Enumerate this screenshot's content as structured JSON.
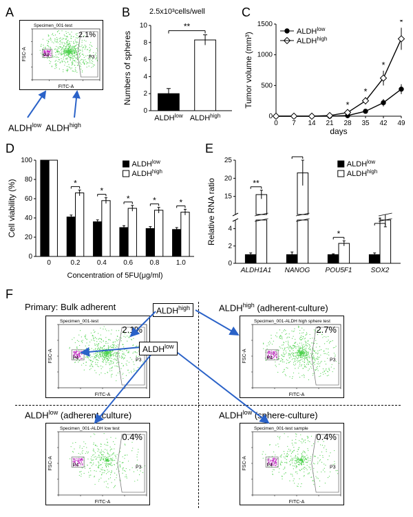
{
  "panelA": {
    "label": "A",
    "flow": {
      "title": "Specimen_001-test",
      "x_axis": "FITC-A",
      "y_axis": "FSC-A",
      "percent": "2.1%",
      "gate_p3": "P3",
      "gate_p4": "P4",
      "cloud_color": "#4fd24f",
      "p4_color": "#c838c8"
    },
    "low_label_pre": "ALDH",
    "low_label_sup": "low",
    "high_label_pre": "ALDH",
    "high_label_sup": "high"
  },
  "panelB": {
    "label": "B",
    "title": "2.5x10³cells/well",
    "y_label": "Numbers of spheres",
    "categories_pre": [
      "ALDH",
      "ALDH"
    ],
    "categories_sup": [
      "low",
      "high"
    ],
    "values": [
      2.0,
      8.3
    ],
    "errors": [
      0.6,
      0.6
    ],
    "fills": [
      "#000000",
      "#ffffff"
    ],
    "ylim": [
      0,
      10
    ],
    "ytick_step": 2,
    "sig": "**"
  },
  "panelC": {
    "label": "C",
    "y_label": "Tumor volume (mm³)",
    "x_label": "days",
    "x_ticks": [
      0,
      7,
      14,
      21,
      28,
      35,
      42,
      49
    ],
    "ylim": [
      0,
      1500
    ],
    "ytick_step": 500,
    "series": [
      {
        "name_pre": "ALDH",
        "name_sup": "low",
        "marker": "circle",
        "fill": "#000",
        "stroke": "#000",
        "y": [
          0,
          0,
          0,
          0,
          10,
          80,
          220,
          440
        ],
        "err": [
          0,
          0,
          0,
          0,
          10,
          30,
          60,
          80
        ]
      },
      {
        "name_pre": "ALDH",
        "name_sup": "high",
        "marker": "diamond",
        "fill": "#fff",
        "stroke": "#000",
        "y": [
          0,
          0,
          0,
          10,
          60,
          250,
          620,
          1260
        ],
        "err": [
          0,
          0,
          0,
          10,
          30,
          60,
          120,
          180
        ]
      }
    ],
    "sig_marks": [
      "*",
      "*",
      "*",
      "*",
      "*"
    ],
    "sig_x": [
      28,
      35,
      42,
      49,
      49
    ]
  },
  "panelD": {
    "label": "D",
    "y_label": "Cell viability (%)",
    "x_label": "Concentration of 5FU(μg/ml)",
    "x_ticks": [
      "0",
      "0.2",
      "0.4",
      "0.6",
      "0.8",
      "1.0"
    ],
    "ylim": [
      0,
      100
    ],
    "ytick_step": 20,
    "legend": [
      {
        "pre": "ALDH",
        "sup": "low",
        "fill": "#000"
      },
      {
        "pre": "ALDH",
        "sup": "high",
        "fill": "#fff"
      }
    ],
    "low": [
      100,
      41,
      36,
      30,
      29,
      28
    ],
    "high": [
      100,
      66,
      58,
      50,
      48,
      46
    ],
    "err_low": [
      0,
      2,
      2,
      2,
      2,
      2
    ],
    "err_high": [
      0,
      3,
      3,
      3,
      3,
      3
    ],
    "sig": [
      "",
      "*",
      "*",
      "*",
      "*",
      "*"
    ]
  },
  "panelE": {
    "label": "E",
    "y_label": "Relative RNA ratio",
    "genes": [
      "ALDH1A1",
      "NANOG",
      "POU5F1",
      "SOX2"
    ],
    "ylim_lower": [
      0,
      5
    ],
    "ylim_upper": [
      10,
      25
    ],
    "ytick_lower": [
      0,
      2,
      4
    ],
    "ytick_upper": [
      15,
      20,
      25
    ],
    "legend": [
      {
        "pre": "ALDH",
        "sup": "low",
        "fill": "#000"
      },
      {
        "pre": "ALDH",
        "sup": "high",
        "fill": "#fff"
      }
    ],
    "low": [
      1.0,
      1.0,
      1.0,
      1.0
    ],
    "high": [
      15.5,
      21.5,
      2.3,
      5.8
    ],
    "err_low": [
      0.2,
      0.3,
      0.1,
      0.2
    ],
    "err_high": [
      1.2,
      3.5,
      0.3,
      0.8
    ],
    "sig": [
      "**",
      "**",
      "*",
      "*"
    ]
  },
  "panelF": {
    "label": "F",
    "titles": {
      "primary": "Primary: Bulk adherent",
      "high_adh": {
        "pre": "ALDH",
        "sup": "high",
        "suffix": " (adherent-culture)"
      },
      "low_adh": {
        "pre": "ALDH",
        "sup": "low",
        "suffix": " (adherent-culture)"
      },
      "low_sph": {
        "pre": "ALDH",
        "sup": "low",
        "suffix": " (sphere-culture)"
      }
    },
    "center_labels": {
      "high": {
        "pre": "ALDH",
        "sup": "high"
      },
      "low": {
        "pre": "ALDH",
        "sup": "low"
      }
    },
    "plots": {
      "primary": {
        "title": "Specimen_001-test",
        "percent": "2.1%"
      },
      "high_adh": {
        "title": "Specimen_001-ALDH high sphere test",
        "percent": "2.7%"
      },
      "low_adh": {
        "title": "Specimen_001-ALDH low test",
        "percent": "0.4%"
      },
      "low_sph": {
        "title": "Specimen_001-test sample",
        "percent": "0.4%"
      }
    },
    "axes": {
      "x": "FITC-A",
      "y": "FSC-A",
      "p3": "P3",
      "p4": "P4"
    },
    "cloud_color": "#4fd24f",
    "p4_color": "#c838c8"
  }
}
